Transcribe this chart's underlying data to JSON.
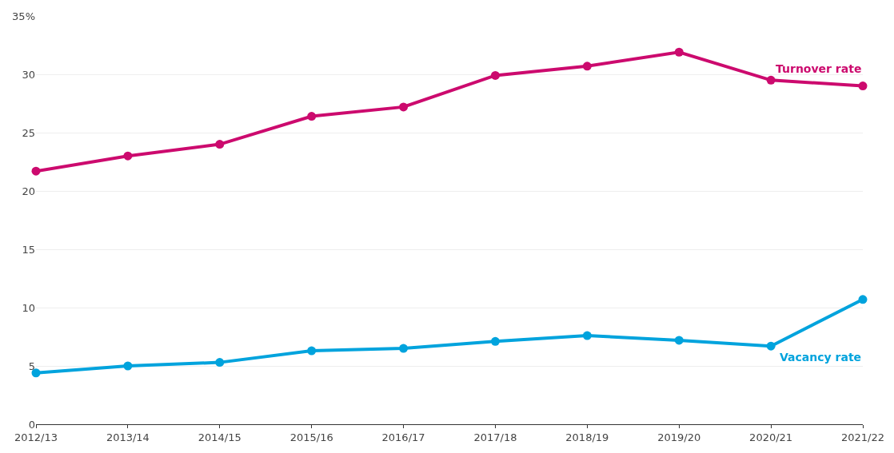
{
  "chart_data": {
    "type": "line",
    "categories": [
      "2012/13",
      "2013/14",
      "2014/15",
      "2015/16",
      "2016/17",
      "2017/18",
      "2018/19",
      "2019/20",
      "2020/21",
      "2021/22"
    ],
    "series": [
      {
        "name": "Turnover rate",
        "color": "#cc0a6e",
        "values": [
          21.7,
          23.0,
          24.0,
          26.4,
          27.2,
          29.9,
          30.7,
          31.9,
          29.5,
          29.0
        ]
      },
      {
        "name": "Vacancy rate",
        "color": "#00a3dd",
        "values": [
          4.4,
          5.0,
          5.3,
          6.3,
          6.5,
          7.1,
          7.6,
          7.2,
          6.7,
          10.7
        ]
      }
    ],
    "ylim": [
      0,
      35
    ],
    "yticks": [
      0,
      5,
      10,
      15,
      20,
      25,
      30,
      {
        "value": 35,
        "label": "35%"
      }
    ],
    "grid": "y",
    "legend": false,
    "marker": "circle",
    "line_style": "solid"
  }
}
